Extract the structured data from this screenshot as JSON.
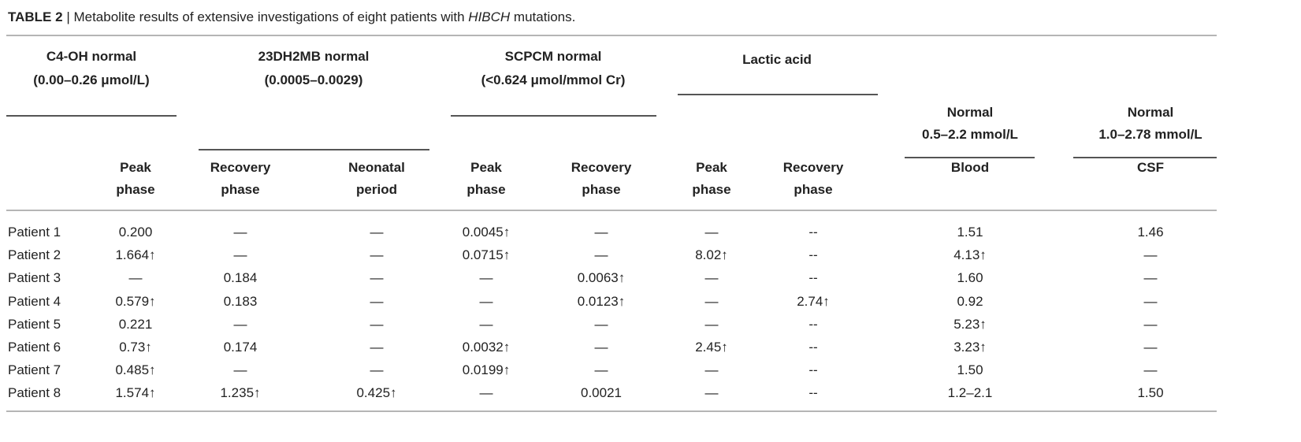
{
  "caption": {
    "label": "TABLE 2",
    "separator": "|",
    "text_before": "Metabolite results of extensive investigations of eight patients with ",
    "gene": "HIBCH",
    "text_after": " mutations."
  },
  "groups": [
    {
      "line1": "C4-OH normal",
      "line2": "(0.00–0.26 μmol/L)"
    },
    {
      "line1": "23DH2MB normal",
      "line2": "(0.0005–0.0029)"
    },
    {
      "line1": "SCPCM normal",
      "line2": "(<0.624 μmol/mmol Cr)"
    },
    {
      "line1": "Lactic acid",
      "line2": ""
    }
  ],
  "normals": [
    {
      "line1": "Normal",
      "line2": "0.5–2.2 mmol/L"
    },
    {
      "line1": "Normal",
      "line2": "1.0–2.78 mmol/L"
    }
  ],
  "columns": [
    {
      "line1": "Peak",
      "line2": "phase"
    },
    {
      "line1": "Recovery",
      "line2": "phase"
    },
    {
      "line1": "Neonatal",
      "line2": "period"
    },
    {
      "line1": "Peak",
      "line2": "phase"
    },
    {
      "line1": "Recovery",
      "line2": "phase"
    },
    {
      "line1": "Peak",
      "line2": "phase"
    },
    {
      "line1": "Recovery",
      "line2": "phase"
    },
    {
      "line1": "Blood",
      "line2": ""
    },
    {
      "line1": "CSF",
      "line2": ""
    }
  ],
  "rows": [
    {
      "patient": "Patient 1",
      "values": [
        "0.200",
        "—",
        "—",
        "0.0045↑",
        "—",
        "—",
        "--",
        "1.51",
        "1.46"
      ]
    },
    {
      "patient": "Patient 2",
      "values": [
        "1.664↑",
        "—",
        "—",
        "0.0715↑",
        "—",
        "8.02↑",
        "--",
        "4.13↑",
        "—"
      ]
    },
    {
      "patient": "Patient 3",
      "values": [
        "—",
        "0.184",
        "—",
        "—",
        "0.0063↑",
        "—",
        "--",
        "1.60",
        "—"
      ]
    },
    {
      "patient": "Patient 4",
      "values": [
        "0.579↑",
        "0.183",
        "—",
        "—",
        "0.0123↑",
        "—",
        "2.74↑",
        "0.92",
        "—"
      ]
    },
    {
      "patient": "Patient 5",
      "values": [
        "0.221",
        "—",
        "—",
        "—",
        "—",
        "—",
        "--",
        "5.23↑",
        "—"
      ]
    },
    {
      "patient": "Patient 6",
      "values": [
        "0.73↑",
        "0.174",
        "—",
        "0.0032↑",
        "—",
        "2.45↑",
        "--",
        "3.23↑",
        "—"
      ]
    },
    {
      "patient": "Patient 7",
      "values": [
        "0.485↑",
        "—",
        "—",
        "0.0199↑",
        "—",
        "—",
        "--",
        "1.50",
        "—"
      ]
    },
    {
      "patient": "Patient 8",
      "values": [
        "1.574↑",
        "1.235↑",
        "0.425↑",
        "—",
        "0.0021",
        "—",
        "--",
        "1.2–2.1",
        "1.50"
      ]
    }
  ]
}
